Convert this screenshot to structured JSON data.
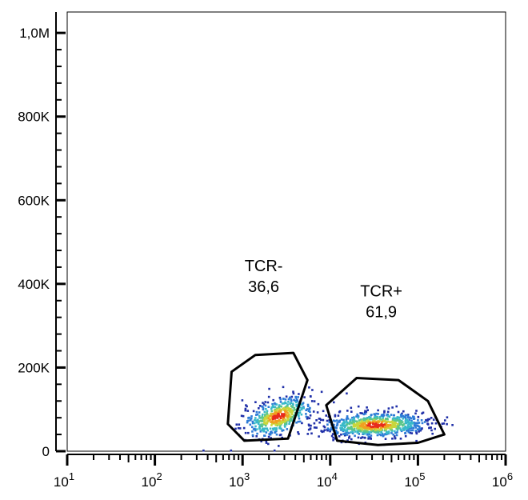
{
  "chart_data": {
    "type": "scatter",
    "subtype": "flow-cytometry-density-dot-plot",
    "title": "",
    "xlabel": "",
    "ylabel": "",
    "x_scale": "log",
    "xlim": [
      10,
      1000000
    ],
    "ylim": [
      0,
      1050000
    ],
    "x_ticks": [
      {
        "value": 10,
        "base": "10",
        "exp": "1"
      },
      {
        "value": 100,
        "base": "10",
        "exp": "2"
      },
      {
        "value": 1000,
        "base": "10",
        "exp": "3"
      },
      {
        "value": 10000,
        "base": "10",
        "exp": "4"
      },
      {
        "value": 100000,
        "base": "10",
        "exp": "5"
      },
      {
        "value": 1000000,
        "base": "10",
        "exp": "6"
      }
    ],
    "y_ticks": [
      {
        "value": 0,
        "label": "0"
      },
      {
        "value": 200000,
        "label": "200K"
      },
      {
        "value": 400000,
        "label": "400K"
      },
      {
        "value": 600000,
        "label": "600K"
      },
      {
        "value": 800000,
        "label": "800K"
      },
      {
        "value": 1000000,
        "label": "1,0M"
      }
    ],
    "grid": false,
    "density_colors": [
      "#1f2fa8",
      "#2c7bd6",
      "#39b9c9",
      "#5cc68a",
      "#c8d63c",
      "#f0a020",
      "#e82b1c"
    ],
    "populations": [
      {
        "name": "TCR-",
        "center_x": 2500,
        "center_y": 85000,
        "spread_logx": 0.2,
        "spread_y": 22000,
        "tilt": 0.55,
        "count": 520
      },
      {
        "name": "TCR+",
        "center_x": 32000,
        "center_y": 65000,
        "spread_logx": 0.3,
        "spread_y": 15000,
        "tilt": 0.1,
        "count": 760
      }
    ],
    "gates": [
      {
        "name": "TCR-",
        "value": "36,6",
        "polygon": [
          [
            750,
            190000
          ],
          [
            1400,
            230000
          ],
          [
            3800,
            235000
          ],
          [
            5500,
            170000
          ],
          [
            3300,
            30000
          ],
          [
            1050,
            25000
          ],
          [
            680,
            65000
          ]
        ]
      },
      {
        "name": "TCR+",
        "value": "61,9",
        "polygon": [
          [
            9000,
            110000
          ],
          [
            20000,
            175000
          ],
          [
            60000,
            170000
          ],
          [
            130000,
            120000
          ],
          [
            200000,
            40000
          ],
          [
            100000,
            20000
          ],
          [
            35000,
            15000
          ],
          [
            12000,
            25000
          ]
        ]
      }
    ]
  }
}
